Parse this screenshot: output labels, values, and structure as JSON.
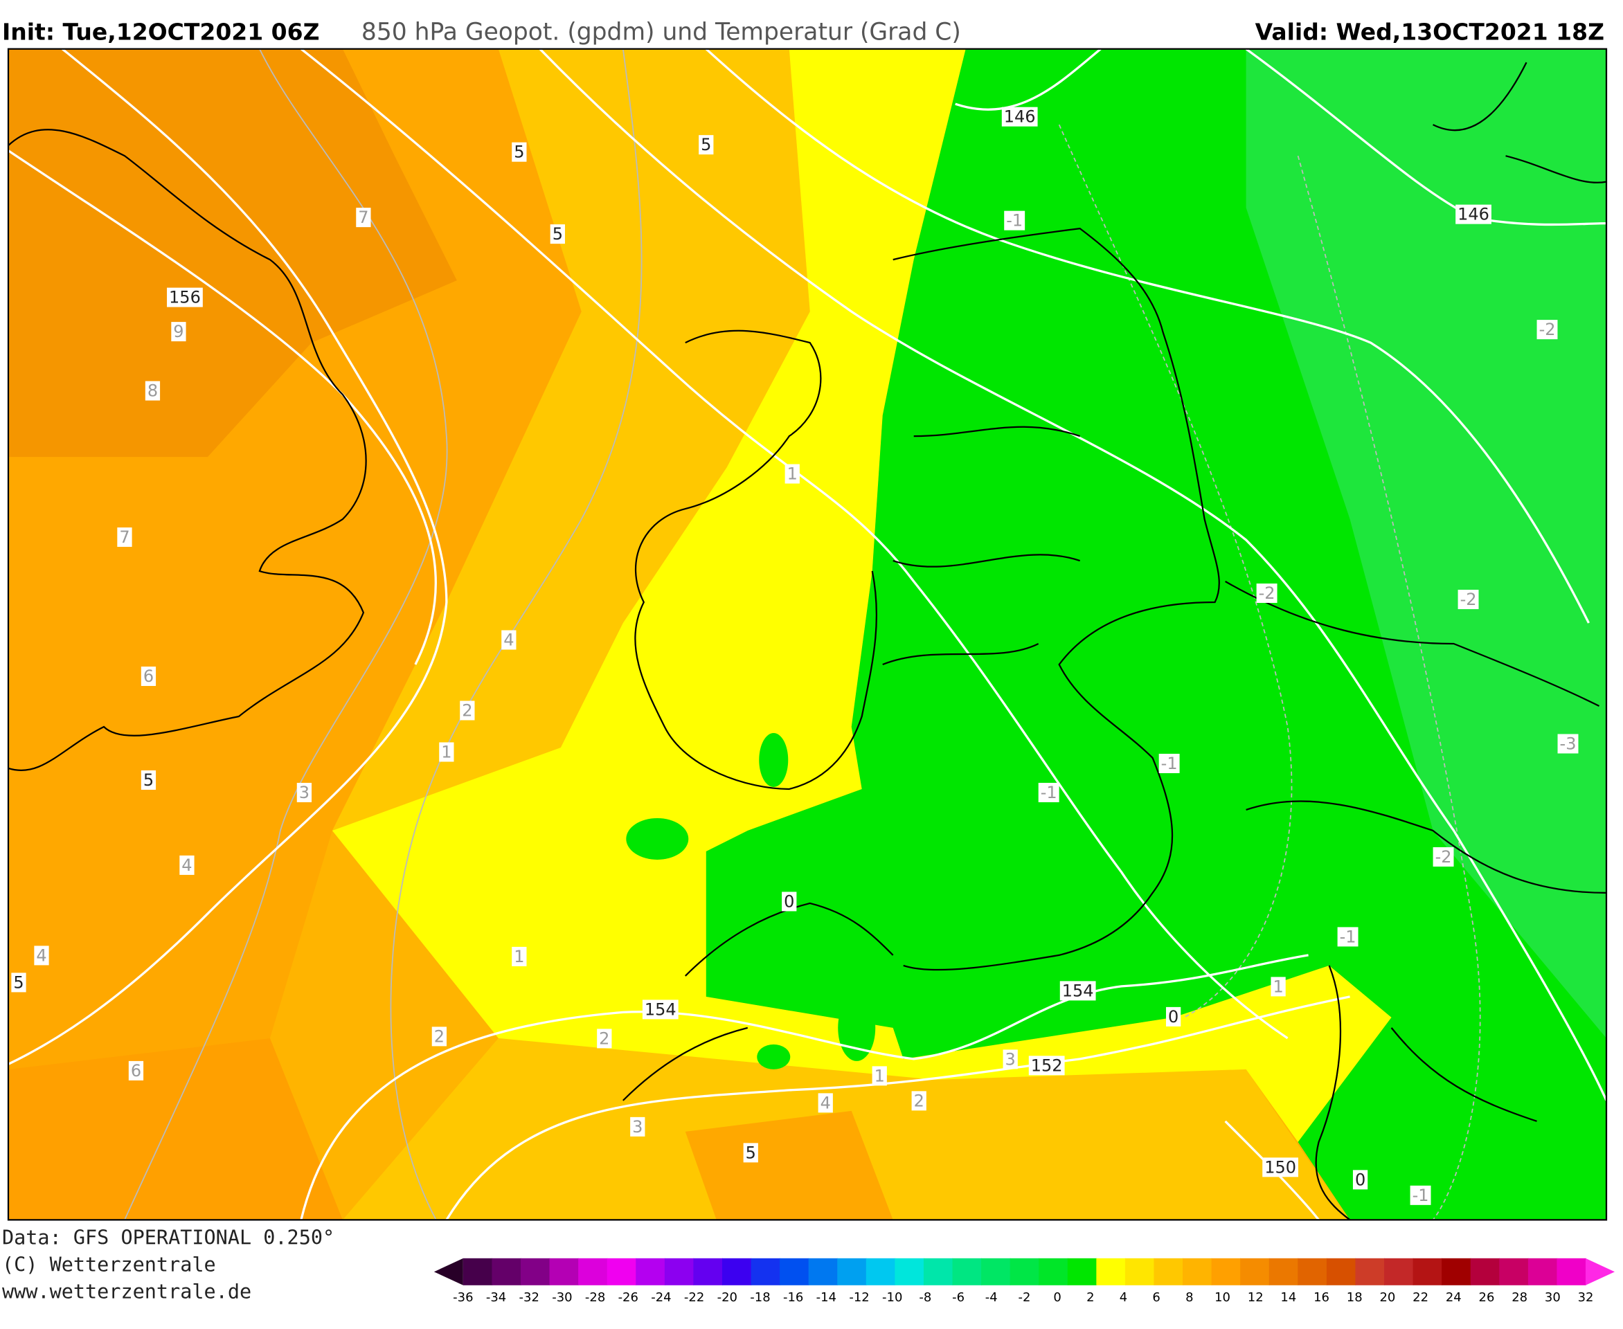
{
  "header": {
    "init": "Init: Tue,12OCT2021 06Z",
    "title": "850 hPa Geopot. (gpdm) und Temperatur (Grad C)",
    "valid": "Valid: Wed,13OCT2021 18Z"
  },
  "map": {
    "labels": [
      "5",
      "5",
      "5",
      "7",
      "156",
      "9",
      "8",
      "7",
      "146",
      "-1",
      "146",
      "-2",
      "1",
      "4",
      "6",
      "2",
      "1",
      "5",
      "3",
      "4",
      "-2",
      "-2",
      "-3",
      "-1",
      "-1",
      "-2",
      "0",
      "-1",
      "1",
      "4",
      "5",
      "154",
      "154",
      "1",
      "0",
      "2",
      "2",
      "6",
      "3",
      "152",
      "1",
      "2",
      "4",
      "3",
      "5",
      "150",
      "0",
      "-1"
    ]
  },
  "footer": {
    "data": "Data: GFS OPERATIONAL 0.250°",
    "copyright": "(C) Wetterzentrale",
    "url": "www.wetterzentrale.de"
  },
  "colorbar": {
    "ticks": [
      -36,
      -34,
      -32,
      -30,
      -28,
      -26,
      -24,
      -22,
      -20,
      -18,
      -16,
      -14,
      -12,
      -10,
      -8,
      -6,
      -4,
      -2,
      0,
      2,
      4,
      6,
      8,
      10,
      12,
      14,
      16,
      18,
      20,
      22,
      24,
      26,
      28,
      30,
      32
    ],
    "colors": [
      "#280028",
      "#46004b",
      "#640069",
      "#820087",
      "#b400b4",
      "#dc00dc",
      "#f000f0",
      "#b400f0",
      "#8c00f0",
      "#6400f0",
      "#3c00f0",
      "#1432f0",
      "#0050f0",
      "#0078f0",
      "#00a0f0",
      "#00c8f0",
      "#00e6dc",
      "#00e6aa",
      "#00e682",
      "#00e664",
      "#00e646",
      "#00e628",
      "#00e600",
      "#ffff00",
      "#ffe600",
      "#ffc800",
      "#ffb400",
      "#ffa000",
      "#f58c00",
      "#eb7800",
      "#e16400",
      "#d75000",
      "#cd3c28",
      "#c32828",
      "#b41414",
      "#a00000",
      "#b4003c",
      "#c80064",
      "#dc0096",
      "#f000c8",
      "#ff28e6"
    ]
  }
}
